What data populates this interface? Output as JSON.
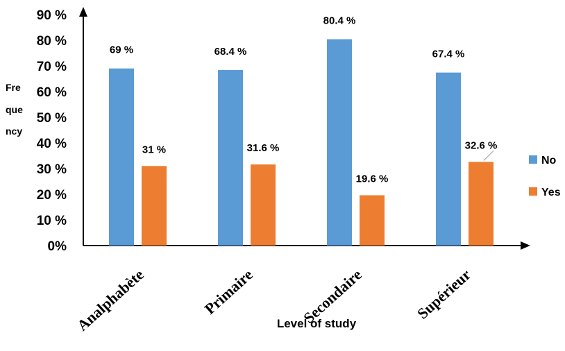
{
  "chart_data": {
    "type": "bar",
    "categories": [
      "Analphabète",
      "Primaire",
      "Secondaire",
      "Supérieur"
    ],
    "series": [
      {
        "name": "No",
        "values": [
          69,
          68.4,
          80.4,
          67.4
        ],
        "labels": [
          "69 %",
          "68.4 %",
          "80.4 %",
          "67.4 %"
        ],
        "color": "#5B9BD5"
      },
      {
        "name": "Yes",
        "values": [
          31,
          31.6,
          19.6,
          32.6
        ],
        "labels": [
          "31 %",
          "31.6 %",
          "19.6 %",
          "32.6 %"
        ],
        "color": "#ED7D31"
      }
    ],
    "xlabel": "Level of study",
    "ylabel": "Fre que ncy",
    "ylabel_lines": [
      "Fre",
      "que",
      "ncy"
    ],
    "ylim": [
      0,
      90
    ],
    "yticks": [
      "0%",
      "10 %",
      "20 %",
      "30 %",
      "40 %",
      "50 %",
      "60 %",
      "70 %",
      "80 %",
      "90 %"
    ],
    "grid": false,
    "legend": "right"
  }
}
